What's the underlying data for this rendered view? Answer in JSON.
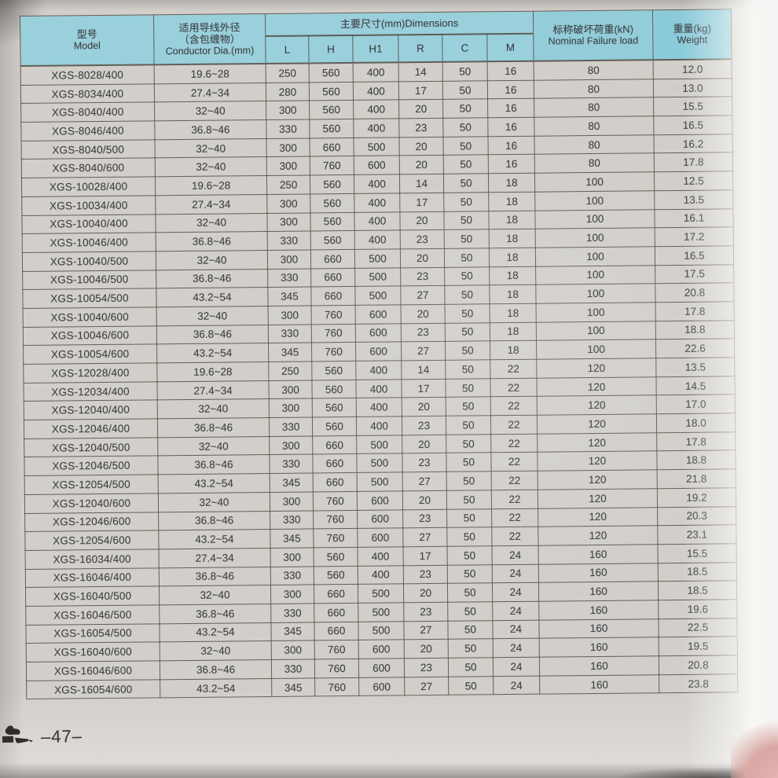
{
  "page": {
    "page_number": "–47–"
  },
  "colors": {
    "header_bg": "#9ad0dc",
    "paper": "#d2cfca",
    "border": "#524a42",
    "text": "#3d4145",
    "desk_pink": "#d9a8a4"
  },
  "table": {
    "header": {
      "model_zh": "型号",
      "model_en": "Model",
      "conductor_zh1": "适用导线外径",
      "conductor_zh2": "（含包缠物）",
      "conductor_en": "Conductor Dia.(mm)",
      "dimensions_label": "主要尺寸(mm)Dimensions",
      "dimension_cols": [
        "L",
        "H",
        "H1",
        "R",
        "C",
        "M"
      ],
      "load_zh": "标称破坏荷重(kN)",
      "load_en": "Nominal Failure load",
      "weight_zh": "重量(kg)",
      "weight_en": "Weight"
    },
    "column_keys": [
      "model",
      "conductor-dia",
      "L",
      "H",
      "H1",
      "R",
      "C",
      "M",
      "failure-load",
      "weight"
    ],
    "rows": [
      [
        "XGS-8028/400",
        "19.6~28",
        "250",
        "560",
        "400",
        "14",
        "50",
        "16",
        "80",
        "12.0"
      ],
      [
        "XGS-8034/400",
        "27.4~34",
        "280",
        "560",
        "400",
        "17",
        "50",
        "16",
        "80",
        "13.0"
      ],
      [
        "XGS-8040/400",
        "32~40",
        "300",
        "560",
        "400",
        "20",
        "50",
        "16",
        "80",
        "15.5"
      ],
      [
        "XGS-8046/400",
        "36.8~46",
        "330",
        "560",
        "400",
        "23",
        "50",
        "16",
        "80",
        "16.5"
      ],
      [
        "XGS-8040/500",
        "32~40",
        "300",
        "660",
        "500",
        "20",
        "50",
        "16",
        "80",
        "16.2"
      ],
      [
        "XGS-8040/600",
        "32~40",
        "300",
        "760",
        "600",
        "20",
        "50",
        "16",
        "80",
        "17.8"
      ],
      [
        "XGS-10028/400",
        "19.6~28",
        "250",
        "560",
        "400",
        "14",
        "50",
        "18",
        "100",
        "12.5"
      ],
      [
        "XGS-10034/400",
        "27.4~34",
        "300",
        "560",
        "400",
        "17",
        "50",
        "18",
        "100",
        "13.5"
      ],
      [
        "XGS-10040/400",
        "32~40",
        "300",
        "560",
        "400",
        "20",
        "50",
        "18",
        "100",
        "16.1"
      ],
      [
        "XGS-10046/400",
        "36.8~46",
        "330",
        "560",
        "400",
        "23",
        "50",
        "18",
        "100",
        "17.2"
      ],
      [
        "XGS-10040/500",
        "32~40",
        "300",
        "660",
        "500",
        "20",
        "50",
        "18",
        "100",
        "16.5"
      ],
      [
        "XGS-10046/500",
        "36.8~46",
        "330",
        "660",
        "500",
        "23",
        "50",
        "18",
        "100",
        "17.5"
      ],
      [
        "XGS-10054/500",
        "43.2~54",
        "345",
        "660",
        "500",
        "27",
        "50",
        "18",
        "100",
        "20.8"
      ],
      [
        "XGS-10040/600",
        "32~40",
        "300",
        "760",
        "600",
        "20",
        "50",
        "18",
        "100",
        "17.8"
      ],
      [
        "XGS-10046/600",
        "36.8~46",
        "330",
        "760",
        "600",
        "23",
        "50",
        "18",
        "100",
        "18.8"
      ],
      [
        "XGS-10054/600",
        "43.2~54",
        "345",
        "760",
        "600",
        "27",
        "50",
        "18",
        "100",
        "22.6"
      ],
      [
        "XGS-12028/400",
        "19.6~28",
        "250",
        "560",
        "400",
        "14",
        "50",
        "22",
        "120",
        "13.5"
      ],
      [
        "XGS-12034/400",
        "27.4~34",
        "300",
        "560",
        "400",
        "17",
        "50",
        "22",
        "120",
        "14.5"
      ],
      [
        "XGS-12040/400",
        "32~40",
        "300",
        "560",
        "400",
        "20",
        "50",
        "22",
        "120",
        "17.0"
      ],
      [
        "XGS-12046/400",
        "36.8~46",
        "330",
        "560",
        "400",
        "23",
        "50",
        "22",
        "120",
        "18.0"
      ],
      [
        "XGS-12040/500",
        "32~40",
        "300",
        "660",
        "500",
        "20",
        "50",
        "22",
        "120",
        "17.8"
      ],
      [
        "XGS-12046/500",
        "36.8~46",
        "330",
        "660",
        "500",
        "23",
        "50",
        "22",
        "120",
        "18.8"
      ],
      [
        "XGS-12054/500",
        "43.2~54",
        "345",
        "660",
        "500",
        "27",
        "50",
        "22",
        "120",
        "21.8"
      ],
      [
        "XGS-12040/600",
        "32~40",
        "300",
        "760",
        "600",
        "20",
        "50",
        "22",
        "120",
        "19.2"
      ],
      [
        "XGS-12046/600",
        "36.8~46",
        "330",
        "760",
        "600",
        "23",
        "50",
        "22",
        "120",
        "20.3"
      ],
      [
        "XGS-12054/600",
        "43.2~54",
        "345",
        "760",
        "600",
        "27",
        "50",
        "22",
        "120",
        "23.1"
      ],
      [
        "XGS-16034/400",
        "27.4~34",
        "300",
        "560",
        "400",
        "17",
        "50",
        "24",
        "160",
        "15.5"
      ],
      [
        "XGS-16046/400",
        "36.8~46",
        "330",
        "560",
        "400",
        "23",
        "50",
        "24",
        "160",
        "18.5"
      ],
      [
        "XGS-16040/500",
        "32~40",
        "300",
        "660",
        "500",
        "20",
        "50",
        "24",
        "160",
        "18.5"
      ],
      [
        "XGS-16046/500",
        "36.8~46",
        "330",
        "660",
        "500",
        "23",
        "50",
        "24",
        "160",
        "19.6"
      ],
      [
        "XGS-16054/500",
        "43.2~54",
        "345",
        "660",
        "500",
        "27",
        "50",
        "24",
        "160",
        "22.5"
      ],
      [
        "XGS-16040/600",
        "32~40",
        "300",
        "760",
        "600",
        "20",
        "50",
        "24",
        "160",
        "19.5"
      ],
      [
        "XGS-16046/600",
        "36.8~46",
        "330",
        "760",
        "600",
        "23",
        "50",
        "24",
        "160",
        "20.8"
      ],
      [
        "XGS-16054/600",
        "43.2~54",
        "345",
        "760",
        "600",
        "27",
        "50",
        "24",
        "160",
        "23.8"
      ]
    ]
  }
}
